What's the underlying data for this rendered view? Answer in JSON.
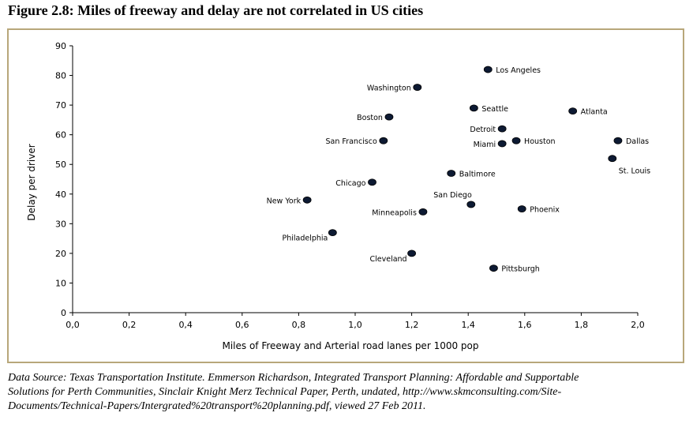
{
  "figure_title": "Figure 2.8: Miles of freeway and delay are not correlated in US cities",
  "source_lines": [
    "Data Source: Texas Transportation Institute. Emmerson Richardson, Integrated Transport Planning: Affordable and Supportable",
    "Solutions for Perth Communities, Sinclair Knight Merz Technical Paper, Perth, undated, http://www.skmconsulting.com/Site-",
    "Documents/Technical-Papers/Intergrated%20transport%20planning.pdf, viewed 27 Feb 2011."
  ],
  "colors": {
    "frame": "#b8a77a",
    "marker": "#0d1a33",
    "text": "#000000"
  },
  "chart_data": {
    "type": "scatter",
    "title": "",
    "xlabel": "Miles of Freeway and Arterial road lanes per 1000 pop",
    "ylabel": "Delay per driver",
    "xlim": [
      0,
      2.0
    ],
    "ylim": [
      0,
      90
    ],
    "xticks": [
      "0,0",
      "0,2",
      "0,4",
      "0,6",
      "0,8",
      "1,0",
      "1,2",
      "1,4",
      "1,6",
      "1,8",
      "2,0"
    ],
    "yticks": [
      "0",
      "10",
      "20",
      "30",
      "40",
      "50",
      "60",
      "70",
      "80",
      "90"
    ],
    "grid": false,
    "points": [
      {
        "label": "Los Angeles",
        "x": 1.47,
        "y": 82,
        "label_side": "right"
      },
      {
        "label": "Washington",
        "x": 1.22,
        "y": 76,
        "label_side": "left"
      },
      {
        "label": "Seattle",
        "x": 1.42,
        "y": 69,
        "label_side": "right"
      },
      {
        "label": "Atlanta",
        "x": 1.77,
        "y": 68,
        "label_side": "right"
      },
      {
        "label": "Boston",
        "x": 1.12,
        "y": 66,
        "label_side": "left"
      },
      {
        "label": "Detroit",
        "x": 1.52,
        "y": 62,
        "label_side": "left"
      },
      {
        "label": "Houston",
        "x": 1.57,
        "y": 58,
        "label_side": "right"
      },
      {
        "label": "Dallas",
        "x": 1.93,
        "y": 58,
        "label_side": "right"
      },
      {
        "label": "San Francisco",
        "x": 1.1,
        "y": 58,
        "label_side": "left"
      },
      {
        "label": "Miami",
        "x": 1.52,
        "y": 57,
        "label_side": "left"
      },
      {
        "label": "St. Louis",
        "x": 1.91,
        "y": 52,
        "label_side": "below-right"
      },
      {
        "label": "Baltimore",
        "x": 1.34,
        "y": 47,
        "label_side": "right"
      },
      {
        "label": "Chicago",
        "x": 1.06,
        "y": 44,
        "label_side": "left"
      },
      {
        "label": "New York",
        "x": 0.83,
        "y": 38,
        "label_side": "left"
      },
      {
        "label": "San Diego",
        "x": 1.41,
        "y": 36.5,
        "label_side": "above-left"
      },
      {
        "label": "Phoenix",
        "x": 1.59,
        "y": 35,
        "label_side": "right"
      },
      {
        "label": "Minneapolis",
        "x": 1.24,
        "y": 34,
        "label_side": "left"
      },
      {
        "label": "Philadelphia",
        "x": 0.92,
        "y": 27,
        "label_side": "below-left"
      },
      {
        "label": "Cleveland",
        "x": 1.2,
        "y": 20,
        "label_side": "below-left"
      },
      {
        "label": "Pittsburgh",
        "x": 1.49,
        "y": 15,
        "label_side": "right"
      }
    ]
  }
}
